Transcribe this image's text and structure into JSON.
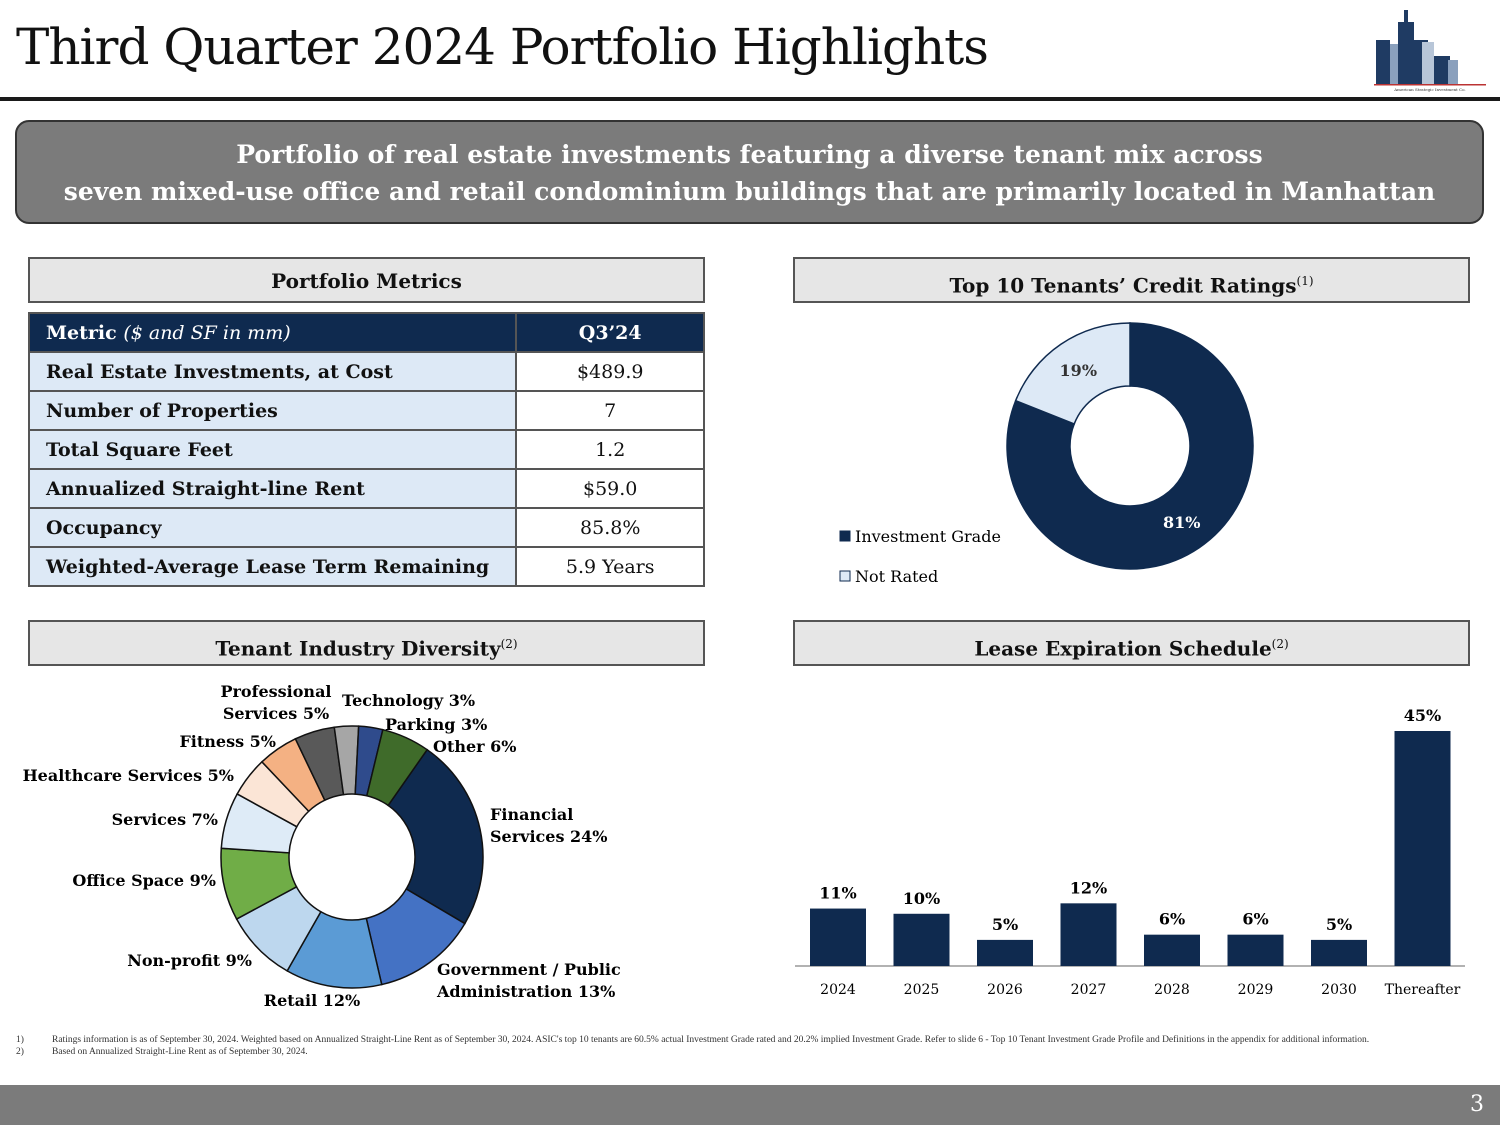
{
  "title": "Third Quarter 2024 Portfolio Highlights",
  "logo": {
    "text": "American Strategic Investment Co.",
    "icon": "skyline-logo"
  },
  "banner": {
    "line1": "Portfolio of real estate investments featuring a diverse tenant mix across",
    "line2": "seven mixed-use office and retail condominium buildings that are primarily located in Manhattan"
  },
  "metrics": {
    "section_title": "Portfolio Metrics",
    "header": {
      "metric": "Metric",
      "metric_note": "($ and SF in mm)",
      "value": "Q3’24"
    },
    "rows": [
      {
        "metric": "Real Estate Investments, at Cost",
        "value": "$489.9"
      },
      {
        "metric": "Number of Properties",
        "value": "7"
      },
      {
        "metric": "Total Square Feet",
        "value": "1.2"
      },
      {
        "metric": "Annualized Straight-line Rent",
        "value": "$59.0"
      },
      {
        "metric": "Occupancy",
        "value": "85.8%"
      },
      {
        "metric": "Weighted-Average Lease Term Remaining",
        "value": "5.9 Years"
      }
    ]
  },
  "credit": {
    "section_title": "Top 10 Tenants’ Credit Ratings",
    "sup": "(1)"
  },
  "industry": {
    "section_title": "Tenant Industry Diversity",
    "sup": "(2)"
  },
  "lease": {
    "section_title": "Lease Expiration Schedule",
    "sup": "(2)"
  },
  "chart_data": [
    {
      "type": "pie",
      "subtype": "donut",
      "title": "Top 10 Tenants’ Credit Ratings",
      "categories": [
        "Investment Grade",
        "Not Rated"
      ],
      "values": [
        81,
        19
      ],
      "labels": [
        "81%",
        "19%"
      ],
      "colors": [
        "#0f2a4f",
        "#dde9f6"
      ],
      "legend": "left"
    },
    {
      "type": "pie",
      "subtype": "donut",
      "title": "Tenant Industry Diversity",
      "categories": [
        "Financial Services",
        "Government / Public Administration",
        "Retail",
        "Non-profit",
        "Office Space",
        "Services",
        "Healthcare Services",
        "Fitness",
        "Professional Services",
        "Technology",
        "Parking",
        "Other"
      ],
      "values": [
        24,
        13,
        12,
        9,
        9,
        7,
        5,
        5,
        5,
        3,
        3,
        6
      ],
      "labels": [
        "Financial Services 24%",
        "Government / Public Administration 13%",
        "Retail 12%",
        "Non-profit 9%",
        "Office Space 9%",
        "Services 7%",
        "Healthcare Services 5%",
        "Fitness 5%",
        "Professional Services 5%",
        "Technology 3%",
        "Parking 3%",
        "Other 6%"
      ],
      "colors": [
        "#0f2a4f",
        "#4472c4",
        "#5b9bd5",
        "#bdd7ee",
        "#70ad47",
        "#deebf7",
        "#fbe5d6",
        "#f4b183",
        "#595959",
        "#a6a6a6",
        "#2f4b8c",
        "#3f6b2a"
      ]
    },
    {
      "type": "bar",
      "title": "Lease Expiration Schedule",
      "categories": [
        "2024",
        "2025",
        "2026",
        "2027",
        "2028",
        "2029",
        "2030",
        "Thereafter"
      ],
      "values": [
        11,
        10,
        5,
        12,
        6,
        6,
        5,
        45
      ],
      "labels": [
        "11%",
        "10%",
        "5%",
        "12%",
        "6%",
        "6%",
        "5%",
        "45%"
      ],
      "color": "#0f2a4f",
      "ylim": [
        0,
        45
      ]
    }
  ],
  "footnotes": [
    {
      "n": "1)",
      "text": "Ratings information is as of September 30, 2024. Weighted based on Annualized Straight-Line Rent as of September 30, 2024. ASIC's top 10 tenants are 60.5% actual Investment Grade rated and 20.2% implied Investment Grade. Refer to slide 6 - Top 10 Tenant Investment Grade Profile and Definitions in the appendix for additional information."
    },
    {
      "n": "2)",
      "text": "Based on Annualized Straight-Line Rent as of September 30, 2024."
    }
  ],
  "page_number": "3"
}
